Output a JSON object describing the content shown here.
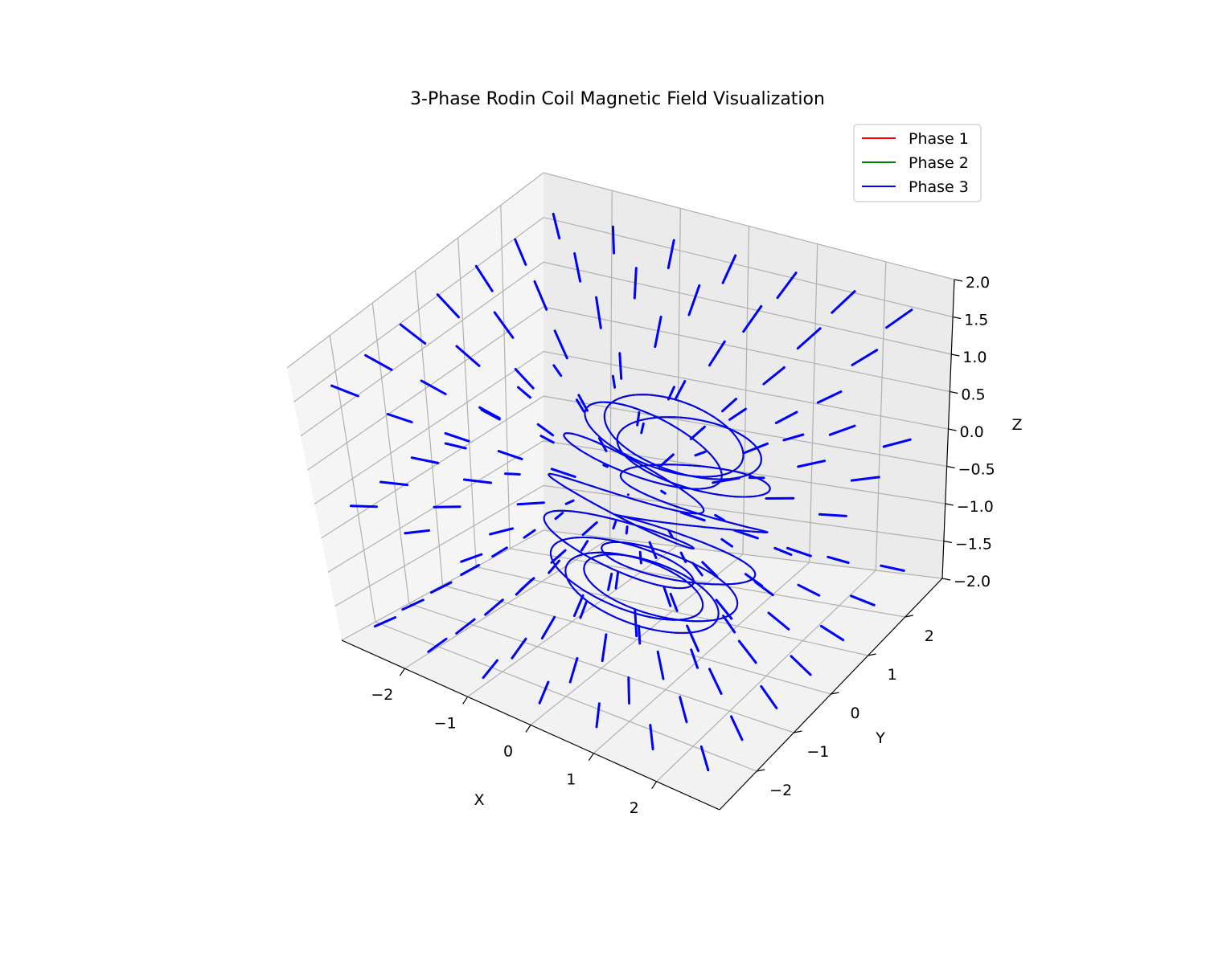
{
  "chart_data": {
    "type": "line",
    "projection": "3d",
    "title": "3-Phase Rodin Coil Magnetic Field Visualization",
    "xlabel": "X",
    "ylabel": "Y",
    "zlabel": "Z",
    "xlim": [
      -3,
      3
    ],
    "ylim": [
      -3,
      3
    ],
    "zlim": [
      -2,
      2
    ],
    "x_ticks": [
      -2,
      -1,
      0,
      1,
      2
    ],
    "y_ticks": [
      -2,
      -1,
      0,
      1,
      2
    ],
    "z_ticks": [
      -2.0,
      -1.5,
      -1.0,
      -0.5,
      0.0,
      0.5,
      1.0,
      1.5,
      2.0
    ],
    "x_tick_labels": [
      "−2",
      "−1",
      "0",
      "1",
      "2"
    ],
    "y_tick_labels": [
      "−2",
      "−1",
      "0",
      "1",
      "2"
    ],
    "z_tick_labels": [
      "−2.0",
      "−1.5",
      "−1.0",
      "−0.5",
      "0.0",
      "0.5",
      "1.0",
      "1.5",
      "2.0"
    ],
    "grid": true,
    "legend_position": "top-right",
    "coil": {
      "shape": "torus",
      "major_radius": 2,
      "minor_radius": 1,
      "toroidal_windings": 12,
      "poloidal_windings": 1,
      "axis": "x"
    },
    "series": [
      {
        "name": "Phase 1",
        "color": "#ff0000",
        "phase_offset_deg": 0
      },
      {
        "name": "Phase 2",
        "color": "#008000",
        "phase_offset_deg": 120
      },
      {
        "name": "Phase 3",
        "color": "#0000ff",
        "phase_offset_deg": 240
      }
    ],
    "quiver": {
      "color": "#0000ff",
      "grid_x": [
        -2.4,
        -1.6,
        -0.8,
        0,
        0.8,
        1.6,
        2.4
      ],
      "grid_y": [
        -2.4,
        -1.6,
        -0.8,
        0,
        0.8,
        1.6,
        2.4
      ],
      "grid_z": [
        -1.6,
        0,
        1.6
      ],
      "length": 0.35
    }
  }
}
